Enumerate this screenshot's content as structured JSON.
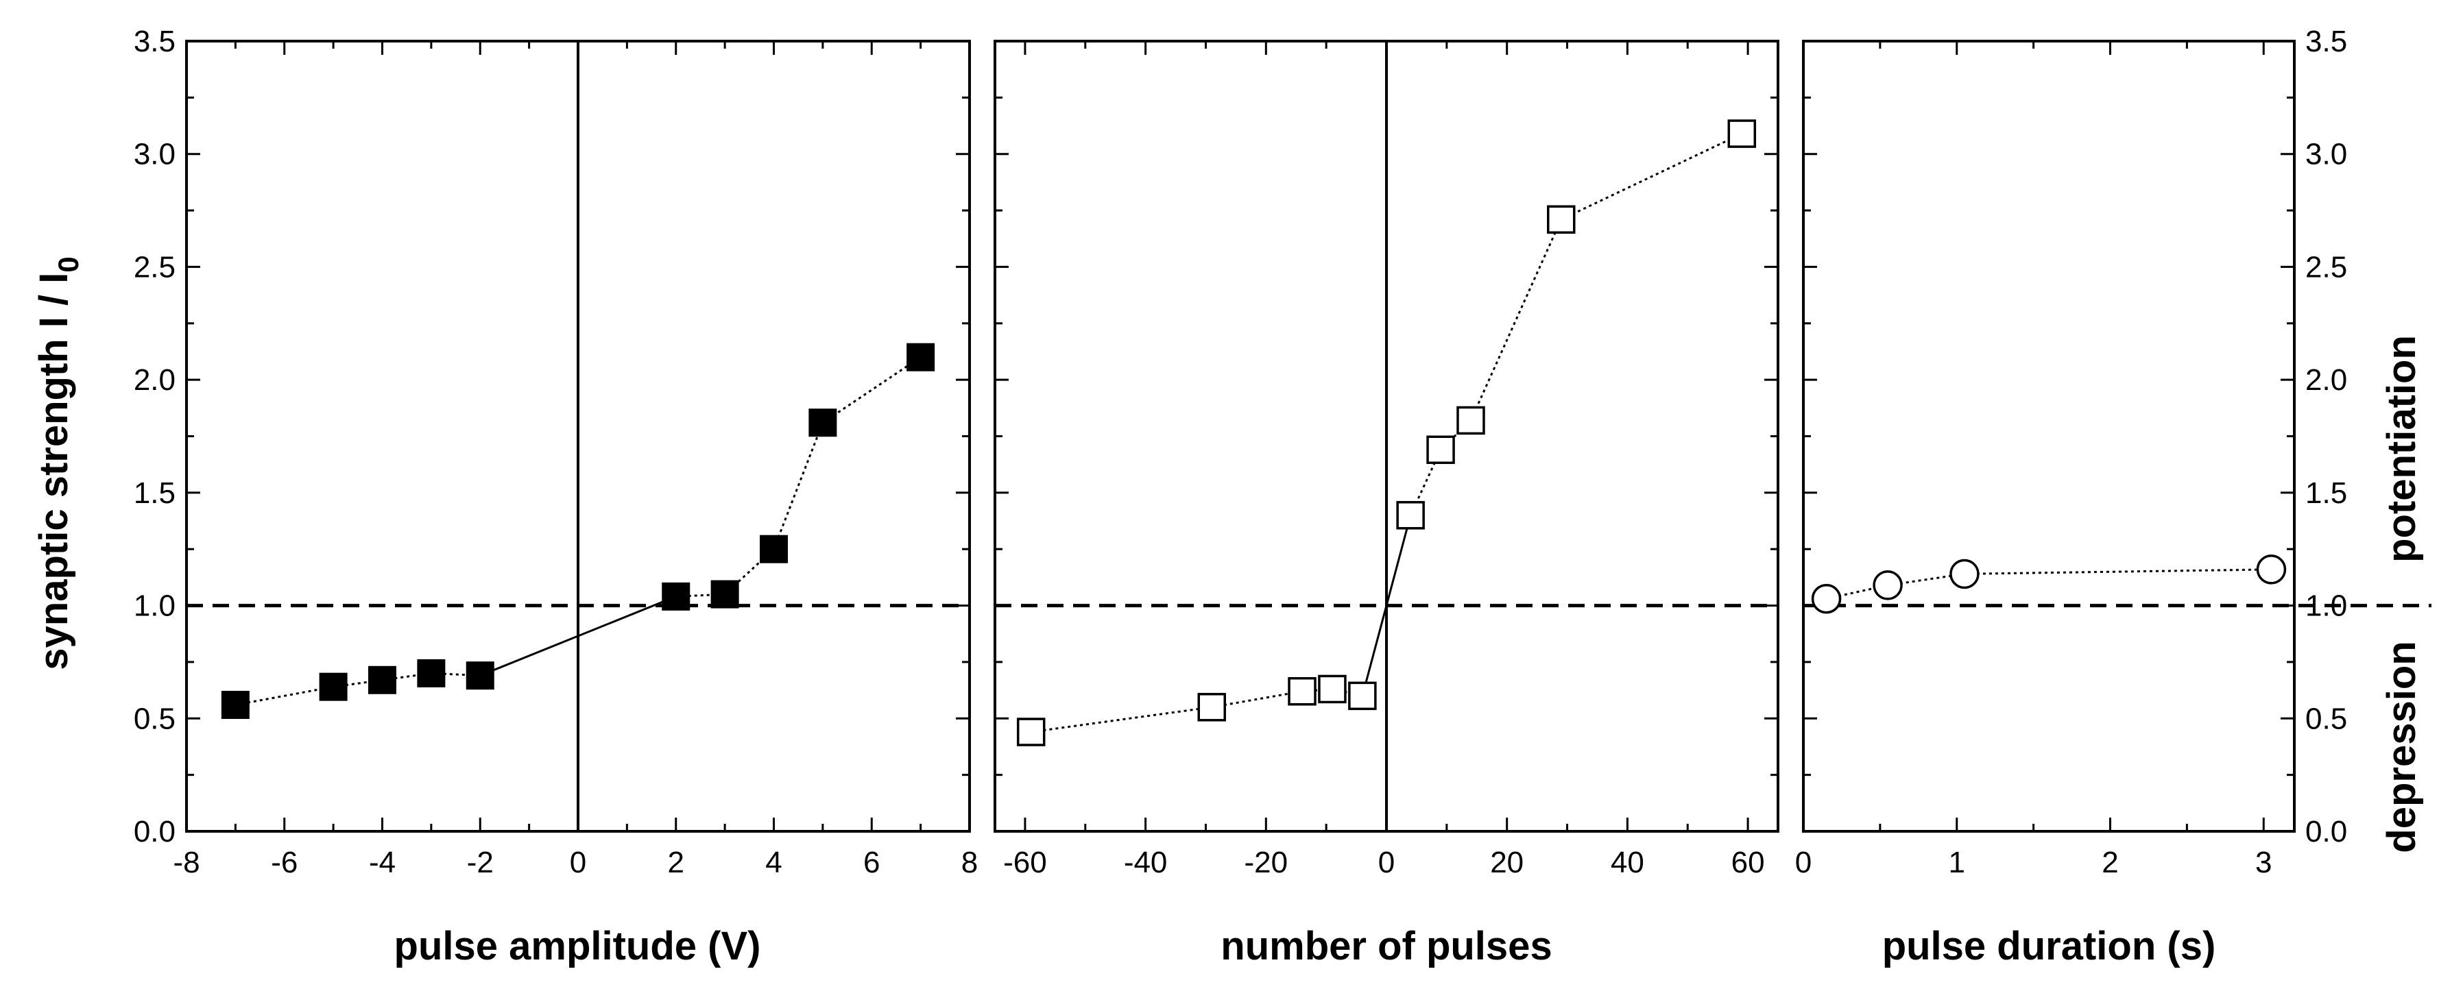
{
  "chart_data": [
    {
      "type": "scatter",
      "panel": "left",
      "xlabel": "pulse amplitude (V)",
      "ylabel_main": "synaptic strength I / I",
      "ylabel_sub": "0",
      "xlim": [
        -8,
        8
      ],
      "ylim": [
        0,
        3.5
      ],
      "x_ticks": [
        "-8",
        "-6",
        "-4",
        "-2",
        "0",
        "2",
        "4",
        "6",
        "8"
      ],
      "y_ticks": [
        "0.0",
        "0.5",
        "1.0",
        "1.5",
        "2.0",
        "2.5",
        "3.0",
        "3.5"
      ],
      "marker": "filled-square",
      "series": [
        {
          "name": "pulse amplitude",
          "x": [
            -7,
            -5,
            -4,
            -3,
            -2,
            2,
            3,
            4,
            5,
            7
          ],
          "y": [
            0.56,
            0.64,
            0.67,
            0.7,
            0.69,
            1.04,
            1.05,
            1.25,
            1.81,
            2.1
          ]
        }
      ],
      "reference_lines": {
        "vertical_x": 0,
        "horizontal_dashed_y": 1.0
      }
    },
    {
      "type": "scatter",
      "panel": "middle",
      "xlabel": "number of pulses",
      "xlim": [
        -65,
        65
      ],
      "ylim": [
        0,
        3.5
      ],
      "x_ticks": [
        "-60",
        "-40",
        "-20",
        "0",
        "20",
        "40",
        "60"
      ],
      "marker": "open-square",
      "series": [
        {
          "name": "number of pulses",
          "x": [
            -59,
            -29,
            -14,
            -9,
            -4,
            4,
            9,
            14,
            29,
            59
          ],
          "y": [
            0.44,
            0.55,
            0.62,
            0.63,
            0.6,
            1.4,
            1.69,
            1.82,
            2.71,
            3.09
          ]
        }
      ],
      "reference_lines": {
        "vertical_x": 0,
        "horizontal_dashed_y": 1.0
      }
    },
    {
      "type": "scatter",
      "panel": "right",
      "xlabel": "pulse duration (s)",
      "xlim": [
        0,
        3.2
      ],
      "ylim": [
        0,
        3.5
      ],
      "x_ticks": [
        "0",
        "1",
        "2",
        "3"
      ],
      "y_ticks_right": [
        "0.0",
        "0.5",
        "1.0",
        "1.5",
        "2.0",
        "2.5",
        "3.0",
        "3.5"
      ],
      "right_labels": {
        "upper": "potentiation",
        "lower": "depression"
      },
      "marker": "open-circle",
      "series": [
        {
          "name": "pulse duration",
          "x": [
            0.15,
            0.55,
            1.05,
            3.05
          ],
          "y": [
            1.03,
            1.09,
            1.14,
            1.16
          ]
        }
      ],
      "reference_lines": {
        "horizontal_dashed_y": 1.0
      }
    }
  ]
}
